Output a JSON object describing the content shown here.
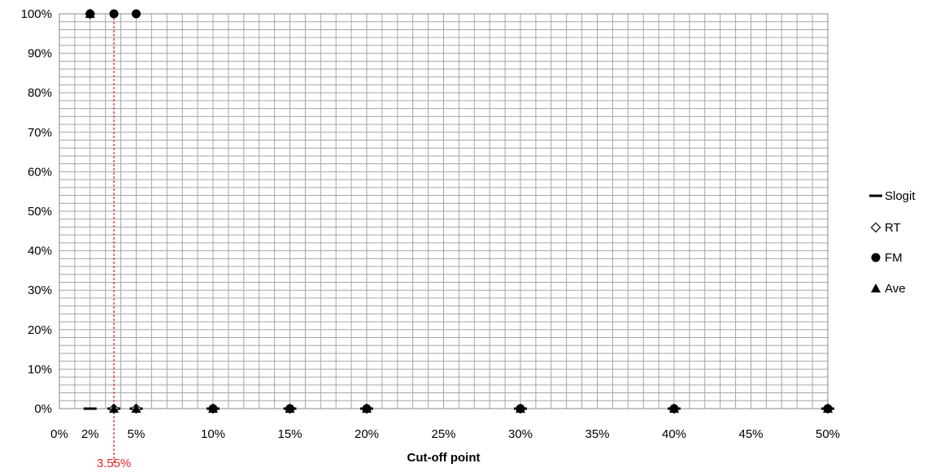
{
  "chart_data": {
    "type": "scatter",
    "xlabel": "Cut-off point",
    "ylabel": "",
    "xlim": [
      0,
      50
    ],
    "ylim": [
      0,
      100
    ],
    "x_ticks": [
      0,
      2,
      5,
      10,
      15,
      20,
      25,
      30,
      35,
      40,
      45,
      50
    ],
    "x_tick_labels": [
      "0%",
      "2%",
      "5%",
      "10%",
      "15%",
      "20%",
      "25%",
      "30%",
      "35%",
      "40%",
      "45%",
      "50%"
    ],
    "y_ticks": [
      0,
      10,
      20,
      30,
      40,
      50,
      60,
      70,
      80,
      90,
      100
    ],
    "y_tick_labels": [
      "0%",
      "10%",
      "20%",
      "30%",
      "40%",
      "50%",
      "60%",
      "70%",
      "80%",
      "90%",
      "100%"
    ],
    "grid": true,
    "legend_position": "right",
    "series": [
      {
        "name": "Slogit",
        "marker": "dash",
        "x": [
          2,
          3.55,
          5,
          10,
          15,
          20,
          30,
          40,
          50
        ],
        "y": [
          0,
          0,
          0,
          0,
          0,
          0,
          0,
          0,
          0
        ]
      },
      {
        "name": "RT",
        "marker": "diamond-open",
        "x": [
          2,
          3.55,
          5,
          10,
          15,
          20,
          30,
          40,
          50
        ],
        "y": [
          100,
          0,
          0,
          0,
          0,
          0,
          0,
          0,
          0
        ]
      },
      {
        "name": "FM",
        "marker": "circle",
        "x": [
          2,
          3.55,
          5,
          10,
          15,
          20,
          30,
          40,
          50
        ],
        "y": [
          100,
          100,
          100,
          0,
          0,
          0,
          0,
          0,
          0
        ]
      },
      {
        "name": "Ave",
        "marker": "triangle",
        "x": [
          2,
          3.55,
          5,
          10,
          15,
          20,
          30,
          40,
          50
        ],
        "y": [
          100,
          0,
          0,
          0,
          0,
          0,
          0,
          0,
          0
        ]
      }
    ],
    "reference_line": {
      "x": 3.55,
      "label": "3.55%",
      "color": "#e8262a"
    }
  }
}
